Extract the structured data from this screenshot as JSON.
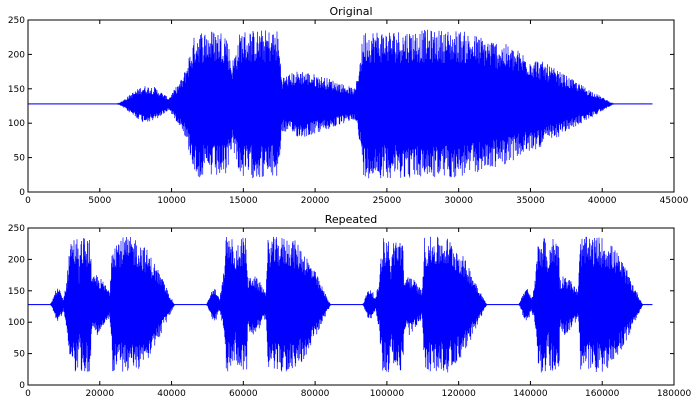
{
  "chart_data": [
    {
      "type": "line",
      "title": "Original",
      "xlabel": "",
      "ylabel": "",
      "xlim": [
        0,
        45000
      ],
      "ylim": [
        0,
        250
      ],
      "xticks": [
        0,
        5000,
        10000,
        15000,
        20000,
        25000,
        30000,
        35000,
        40000,
        45000
      ],
      "yticks": [
        0,
        50,
        100,
        150,
        200,
        250
      ],
      "grid": false,
      "baseline": 128,
      "color": "#0000ff",
      "signal_extent": [
        0,
        43500
      ],
      "envelope": [
        [
          0,
          0
        ],
        [
          6200,
          0
        ],
        [
          6600,
          5
        ],
        [
          7300,
          17
        ],
        [
          8000,
          27
        ],
        [
          8800,
          25
        ],
        [
          9800,
          9
        ],
        [
          10800,
          40
        ],
        [
          11700,
          108
        ],
        [
          13800,
          108
        ],
        [
          14200,
          60
        ],
        [
          14800,
          108
        ],
        [
          17400,
          108
        ],
        [
          17700,
          40
        ],
        [
          19000,
          50
        ],
        [
          21000,
          37
        ],
        [
          22800,
          22
        ],
        [
          23400,
          108
        ],
        [
          30000,
          108
        ],
        [
          33000,
          90
        ],
        [
          36000,
          60
        ],
        [
          38000,
          35
        ],
        [
          40000,
          10
        ],
        [
          40800,
          0
        ],
        [
          43500,
          0
        ]
      ]
    },
    {
      "type": "line",
      "title": "Repeated",
      "xlabel": "",
      "ylabel": "",
      "xlim": [
        0,
        180000
      ],
      "ylim": [
        0,
        250
      ],
      "xticks": [
        0,
        20000,
        40000,
        60000,
        80000,
        100000,
        120000,
        140000,
        160000,
        180000
      ],
      "yticks": [
        0,
        50,
        100,
        150,
        200,
        250
      ],
      "grid": false,
      "baseline": 128,
      "color": "#0000ff",
      "signal_extent": [
        0,
        174000
      ],
      "repeats": 4,
      "repeat_period": 43500
    }
  ]
}
